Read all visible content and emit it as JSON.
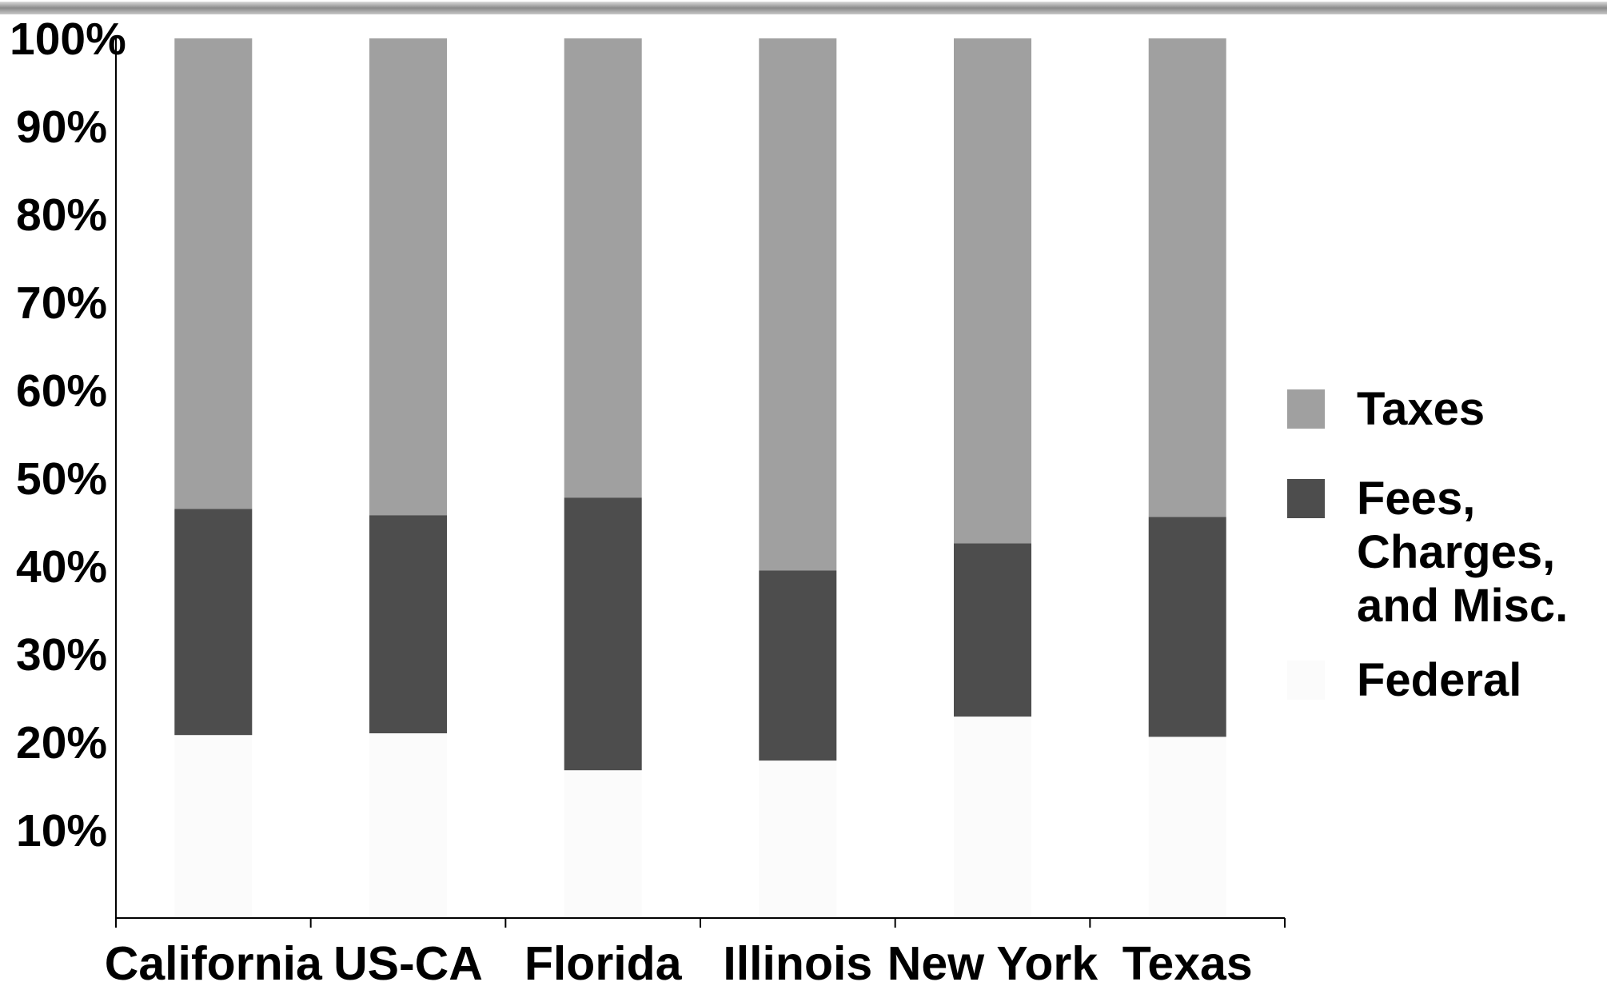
{
  "chart_data": {
    "type": "bar",
    "stacked": true,
    "normalized": true,
    "categories": [
      "California",
      "US-CA",
      "Florida",
      "Illinois",
      "New York",
      "Texas"
    ],
    "series": [
      {
        "name": "Federal",
        "color": "#fbfbfb",
        "values": [
          20.8,
          21.0,
          16.8,
          17.9,
          22.9,
          20.6
        ]
      },
      {
        "name": "Fees, Charges, and Misc.",
        "color": "#4d4d4d",
        "values": [
          25.7,
          24.8,
          31.0,
          21.6,
          19.7,
          25.0
        ]
      },
      {
        "name": "Taxes",
        "color": "#a0a0a0",
        "values": [
          53.5,
          54.2,
          52.2,
          60.5,
          57.4,
          54.4
        ]
      }
    ],
    "legend_order": [
      "Taxes",
      "Fees, Charges, and Misc.",
      "Federal"
    ],
    "legend_lines": {
      "Taxes": [
        "Taxes"
      ],
      "Fees, Charges, and Misc.": [
        "Fees,",
        "Charges,",
        "and Misc."
      ],
      "Federal": [
        "Federal"
      ]
    },
    "yticks": [
      "10%",
      "20%",
      "30%",
      "40%",
      "50%",
      "60%",
      "70%",
      "80%",
      "90%",
      "100%"
    ],
    "ylim": [
      0,
      100
    ],
    "xlabel": "",
    "ylabel": "",
    "title": "",
    "grid": false,
    "legend_position": "right"
  }
}
